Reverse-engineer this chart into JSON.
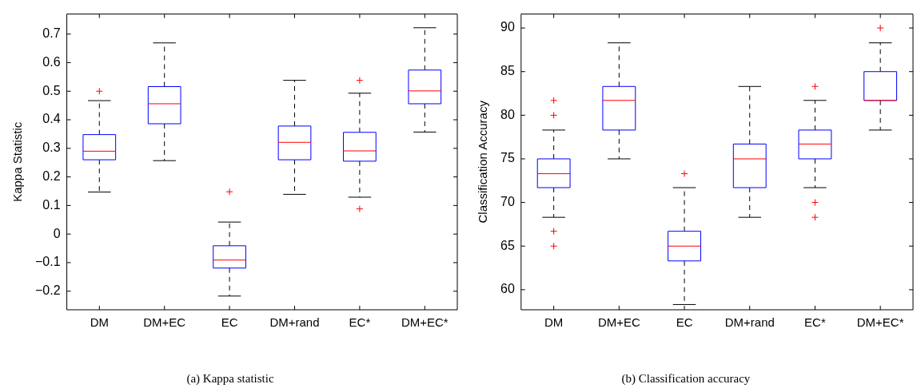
{
  "chart_data": [
    {
      "type": "box",
      "ylabel": "Kappa Statistic",
      "annotations": [
        "(a)  Kappa statistic"
      ],
      "categories": [
        "DM",
        "DM+EC",
        "EC",
        "DM+rand",
        "EC*",
        "DM+EC*"
      ],
      "ylim": [
        -0.265,
        0.77
      ],
      "yticks": [
        {
          "value": -0.2,
          "label": "−0.2"
        },
        {
          "value": -0.1,
          "label": "−0.1"
        },
        0,
        0.1,
        0.2,
        0.3,
        0.4,
        0.5,
        0.6,
        0.7
      ],
      "series": [
        {
          "color": "#0000ff",
          "boxes": [
            {
              "low": 0.147,
              "q1": 0.26,
              "median": 0.29,
              "q3": 0.348,
              "high": 0.467,
              "outliers": [
                0.5
              ]
            },
            {
              "low": 0.257,
              "q1": 0.386,
              "median": 0.456,
              "q3": 0.516,
              "high": 0.669
            },
            {
              "low": -0.217,
              "q1": -0.119,
              "median": -0.091,
              "q3": -0.041,
              "high": 0.042,
              "outliers": [
                0.148
              ]
            },
            {
              "low": 0.139,
              "q1": 0.26,
              "median": 0.321,
              "q3": 0.378,
              "high": 0.538
            },
            {
              "low": 0.129,
              "q1": 0.255,
              "median": 0.291,
              "q3": 0.356,
              "high": 0.493,
              "outliers": [
                0.538,
                0.088
              ]
            },
            {
              "low": 0.357,
              "q1": 0.456,
              "median": 0.501,
              "q3": 0.574,
              "high": 0.722
            }
          ]
        }
      ]
    },
    {
      "type": "box",
      "ylabel": "Classification Accuracy",
      "annotations": [
        "(b)  Classification accuracy"
      ],
      "categories": [
        "DM",
        "DM+EC",
        "EC",
        "DM+rand",
        "EC*",
        "DM+EC*"
      ],
      "ylim": [
        57.7,
        91.6
      ],
      "yticks": [
        60,
        65,
        70,
        75,
        80,
        85,
        90
      ],
      "series": [
        {
          "color": "#0000ff",
          "boxes": [
            {
              "low": 68.3,
              "q1": 71.7,
              "median": 73.3,
              "q3": 75,
              "high": 78.3,
              "outliers": [
                81.7,
                80,
                66.7,
                65
              ]
            },
            {
              "low": 75,
              "q1": 78.3,
              "median": 81.7,
              "q3": 83.3,
              "high": 88.3
            },
            {
              "low": 58.3,
              "q1": 63.3,
              "median": 65,
              "q3": 66.7,
              "high": 71.7,
              "outliers": [
                73.3
              ]
            },
            {
              "low": 68.3,
              "q1": 71.7,
              "median": 75,
              "q3": 76.7,
              "high": 83.3
            },
            {
              "low": 71.7,
              "q1": 75,
              "median": 76.7,
              "q3": 78.3,
              "high": 81.7,
              "outliers": [
                83.3,
                70,
                68.3
              ]
            },
            {
              "low": 78.3,
              "q1": 81.7,
              "median": 81.7,
              "q3": 85,
              "high": 88.3,
              "outliers": [
                90
              ]
            }
          ]
        }
      ]
    }
  ]
}
